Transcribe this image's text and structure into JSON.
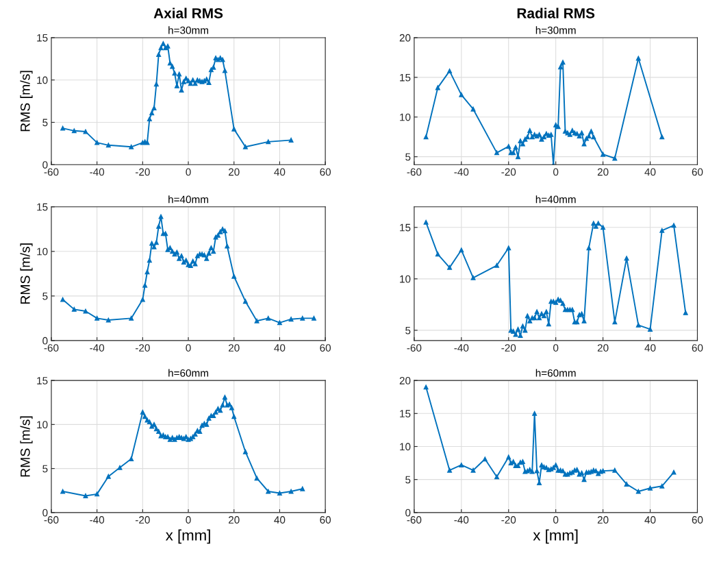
{
  "chart_data": [
    {
      "type": "line",
      "title": "Axial RMS",
      "subtitle": "h=30mm",
      "ylabel": "RMS [m/s]",
      "xlim": [
        -60,
        60
      ],
      "xticks": [
        -60,
        -40,
        -20,
        0,
        20,
        40,
        60
      ],
      "ylim": [
        0,
        15
      ],
      "yticks": [
        0,
        5,
        10,
        15
      ],
      "grid": true,
      "marker": "triangle",
      "line_style": "solid",
      "series": [
        {
          "color": "#0072bd",
          "x": [
            -55,
            -50,
            -45,
            -40,
            -35,
            -25,
            -20,
            -19,
            -18,
            -17,
            -16,
            -15,
            -14,
            -13,
            -12,
            -11,
            -10,
            -9,
            -8,
            -7,
            -6,
            -5,
            -4,
            -3,
            -2,
            -1,
            0,
            1,
            2,
            3,
            4,
            5,
            6,
            7,
            8,
            9,
            10,
            11,
            12,
            13,
            14,
            15,
            16,
            20,
            25,
            35,
            45
          ],
          "values": [
            4.3,
            4.0,
            3.9,
            2.6,
            2.3,
            2.1,
            2.6,
            2.7,
            2.6,
            5.4,
            6.1,
            6.7,
            9.5,
            13.0,
            13.8,
            14.3,
            13.8,
            14.0,
            12.0,
            11.6,
            10.8,
            9.3,
            10.7,
            8.8,
            9.8,
            10.2,
            9.9,
            9.6,
            10.0,
            9.6,
            10.0,
            9.9,
            9.8,
            9.9,
            10.1,
            9.7,
            11.2,
            11.5,
            12.6,
            12.4,
            12.6,
            12.4,
            11.1,
            4.2,
            2.1,
            2.7,
            2.9
          ]
        }
      ]
    },
    {
      "type": "line",
      "title": "Radial RMS",
      "subtitle": "h=30mm",
      "xlim": [
        -60,
        60
      ],
      "xticks": [
        -60,
        -40,
        -20,
        0,
        20,
        40,
        60
      ],
      "ylim": [
        4,
        20
      ],
      "yticks": [
        5,
        10,
        15,
        20
      ],
      "grid": true,
      "marker": "triangle",
      "line_style": "solid",
      "series": [
        {
          "color": "#0072bd",
          "x": [
            -55,
            -50,
            -45,
            -40,
            -35,
            -25,
            -20,
            -19,
            -18,
            -17,
            -16,
            -15,
            -14,
            -13,
            -12,
            -11,
            -10,
            -9,
            -8,
            -7,
            -6,
            -5,
            -4,
            -3,
            -2,
            -1,
            0,
            1,
            2,
            3,
            4,
            5,
            6,
            7,
            8,
            9,
            10,
            11,
            12,
            13,
            14,
            15,
            16,
            20,
            25,
            35,
            45
          ],
          "values": [
            7.5,
            13.7,
            15.8,
            12.8,
            11.0,
            5.5,
            6.3,
            5.5,
            5.5,
            6.2,
            5.0,
            7.0,
            6.6,
            7.2,
            7.5,
            8.3,
            7.5,
            7.8,
            7.6,
            7.8,
            7.2,
            7.5,
            7.9,
            7.7,
            7.8,
            4.0,
            9.0,
            8.8,
            16.3,
            16.9,
            8.2,
            8.0,
            7.8,
            8.3,
            8.0,
            7.9,
            7.6,
            8.0,
            6.6,
            7.3,
            7.6,
            8.2,
            7.5,
            5.3,
            4.8,
            17.4,
            7.5
          ]
        }
      ]
    },
    {
      "type": "line",
      "subtitle": "h=40mm",
      "ylabel": "RMS [m/s]",
      "xlim": [
        -60,
        60
      ],
      "xticks": [
        -60,
        -40,
        -20,
        0,
        20,
        40,
        60
      ],
      "ylim": [
        0,
        15
      ],
      "yticks": [
        0,
        5,
        10,
        15
      ],
      "grid": true,
      "marker": "triangle",
      "line_style": "solid",
      "series": [
        {
          "color": "#0072bd",
          "x": [
            -55,
            -50,
            -45,
            -40,
            -35,
            -25,
            -20,
            -19,
            -18,
            -17,
            -16,
            -15,
            -14,
            -13,
            -12,
            -11,
            -10,
            -9,
            -8,
            -7,
            -6,
            -5,
            -4,
            -3,
            -2,
            -1,
            0,
            1,
            2,
            3,
            4,
            5,
            6,
            7,
            8,
            9,
            10,
            11,
            12,
            13,
            14,
            15,
            16,
            17,
            20,
            25,
            30,
            35,
            40,
            45,
            50,
            55
          ],
          "values": [
            4.6,
            3.5,
            3.3,
            2.5,
            2.3,
            2.5,
            4.6,
            6.2,
            7.7,
            9.0,
            10.9,
            10.5,
            11.0,
            12.8,
            13.9,
            12.0,
            12.0,
            10.2,
            10.4,
            10.0,
            9.7,
            9.9,
            9.2,
            9.5,
            8.8,
            9.0,
            8.5,
            8.4,
            8.9,
            8.6,
            9.5,
            9.7,
            9.7,
            9.6,
            9.2,
            9.8,
            10.4,
            10.0,
            11.6,
            11.8,
            12.2,
            12.5,
            12.3,
            10.6,
            7.2,
            4.4,
            2.2,
            2.5,
            2.0,
            2.4,
            2.5,
            2.5
          ]
        }
      ]
    },
    {
      "type": "line",
      "subtitle": "h=40mm",
      "xlim": [
        -60,
        60
      ],
      "xticks": [
        -60,
        -40,
        -20,
        0,
        20,
        40,
        60
      ],
      "ylim": [
        4,
        17
      ],
      "yticks": [
        5,
        10,
        15
      ],
      "grid": true,
      "marker": "triangle",
      "line_style": "solid",
      "series": [
        {
          "color": "#0072bd",
          "x": [
            -55,
            -50,
            -45,
            -40,
            -35,
            -25,
            -20,
            -19,
            -18,
            -17,
            -16,
            -15,
            -14,
            -13,
            -12,
            -11,
            -10,
            -9,
            -8,
            -7,
            -6,
            -5,
            -4,
            -3,
            -2,
            -1,
            0,
            1,
            2,
            3,
            4,
            5,
            6,
            7,
            8,
            9,
            10,
            11,
            12,
            14,
            16,
            17,
            18,
            20,
            25,
            30,
            35,
            40,
            45,
            50,
            55
          ],
          "values": [
            15.5,
            12.4,
            11.1,
            12.8,
            10.1,
            11.3,
            13.0,
            5.0,
            4.9,
            4.6,
            5.1,
            4.5,
            5.4,
            5.0,
            6.4,
            5.9,
            6.2,
            6.2,
            6.8,
            6.2,
            6.6,
            6.4,
            6.8,
            5.6,
            7.8,
            7.8,
            7.7,
            8.0,
            7.9,
            7.6,
            7.0,
            7.0,
            7.0,
            7.0,
            5.8,
            5.8,
            6.5,
            6.6,
            5.9,
            13.0,
            15.4,
            15.1,
            15.4,
            15.0,
            5.8,
            12.0,
            5.5,
            5.1,
            14.7,
            15.2,
            6.7
          ]
        }
      ]
    },
    {
      "type": "line",
      "subtitle": "h=60mm",
      "xlabel": "x [mm]",
      "ylabel": "RMS [m/s]",
      "xlim": [
        -60,
        60
      ],
      "xticks": [
        -60,
        -40,
        -20,
        0,
        20,
        40,
        60
      ],
      "ylim": [
        0,
        15
      ],
      "yticks": [
        0,
        5,
        10,
        15
      ],
      "grid": true,
      "marker": "triangle",
      "line_style": "solid",
      "series": [
        {
          "color": "#0072bd",
          "x": [
            -55,
            -45,
            -40,
            -35,
            -30,
            -25,
            -20,
            -19,
            -18,
            -17,
            -16,
            -15,
            -14,
            -13,
            -12,
            -11,
            -10,
            -9,
            -8,
            -7,
            -6,
            -5,
            -4,
            -3,
            -2,
            -1,
            0,
            1,
            2,
            3,
            4,
            5,
            6,
            7,
            8,
            9,
            10,
            11,
            12,
            13,
            14,
            15,
            16,
            17,
            18,
            19,
            20,
            25,
            30,
            35,
            40,
            45,
            50
          ],
          "values": [
            2.4,
            1.9,
            2.1,
            4.1,
            5.1,
            6.1,
            11.4,
            10.9,
            10.5,
            10.3,
            9.8,
            10.0,
            9.5,
            9.2,
            8.7,
            8.8,
            8.6,
            8.6,
            8.3,
            8.5,
            8.3,
            8.5,
            8.6,
            8.5,
            8.4,
            8.6,
            8.3,
            8.4,
            8.6,
            8.9,
            9.3,
            9.2,
            9.9,
            10.1,
            10.0,
            10.7,
            11.0,
            11.0,
            11.4,
            11.8,
            11.6,
            12.2,
            13.1,
            12.2,
            12.3,
            11.9,
            10.9,
            6.9,
            3.9,
            2.4,
            2.2,
            2.4,
            2.7
          ]
        }
      ]
    },
    {
      "type": "line",
      "subtitle": "h=60mm",
      "xlabel": "x [mm]",
      "xlim": [
        -60,
        60
      ],
      "xticks": [
        -60,
        -40,
        -20,
        0,
        20,
        40,
        60
      ],
      "ylim": [
        0,
        20
      ],
      "yticks": [
        0,
        5,
        10,
        15,
        20
      ],
      "grid": true,
      "marker": "triangle",
      "line_style": "solid",
      "series": [
        {
          "color": "#0072bd",
          "x": [
            -55,
            -45,
            -40,
            -35,
            -30,
            -25,
            -20,
            -19,
            -18,
            -17,
            -16,
            -15,
            -14,
            -13,
            -12,
            -11,
            -10,
            -9,
            -8,
            -7,
            -6,
            -5,
            -4,
            -3,
            -2,
            -1,
            0,
            1,
            2,
            3,
            4,
            5,
            6,
            7,
            8,
            9,
            10,
            11,
            12,
            13,
            14,
            15,
            16,
            17,
            18,
            19,
            20,
            25,
            30,
            35,
            40,
            45,
            50
          ],
          "values": [
            19.0,
            6.4,
            7.2,
            6.4,
            8.1,
            5.4,
            8.4,
            7.5,
            7.7,
            7.1,
            7.1,
            7.6,
            7.7,
            6.2,
            6.3,
            6.5,
            6.2,
            15.0,
            6.3,
            4.5,
            7.2,
            6.9,
            6.8,
            6.5,
            6.6,
            6.8,
            7.2,
            6.4,
            6.4,
            6.3,
            5.8,
            5.8,
            6.0,
            6.1,
            6.4,
            6.5,
            5.8,
            6.0,
            5.0,
            6.1,
            6.1,
            6.2,
            6.4,
            6.3,
            5.9,
            6.2,
            6.3,
            6.4,
            4.3,
            3.2,
            3.7,
            4.0,
            6.1
          ]
        }
      ]
    }
  ]
}
